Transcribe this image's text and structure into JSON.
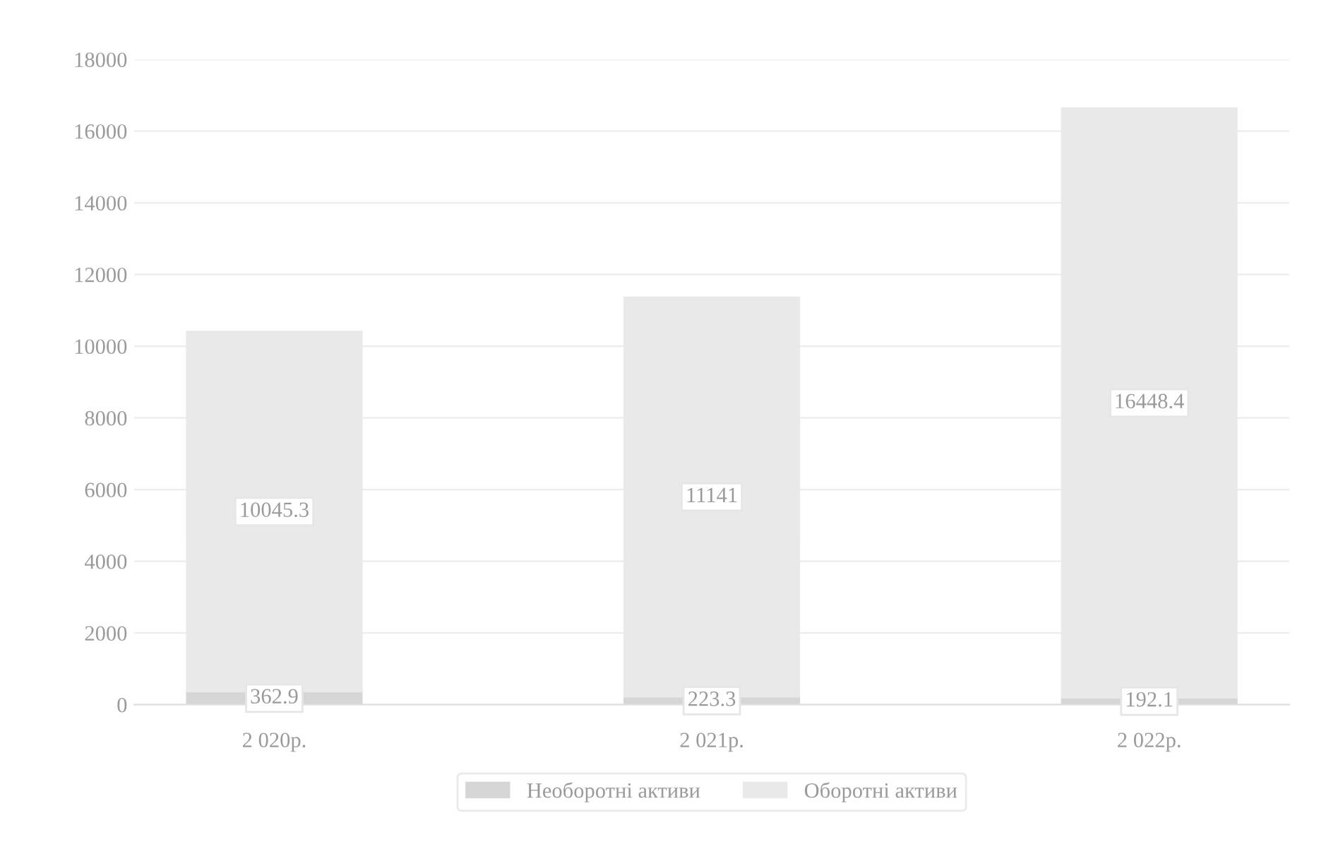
{
  "chart_data": {
    "type": "bar",
    "stacked": true,
    "categories": [
      "2 020р.",
      "2 021р.",
      "2 022р."
    ],
    "series": [
      {
        "name": "Необоротні активи",
        "color": "#d6d6d6",
        "values": [
          362.9,
          223.3,
          192.1
        ]
      },
      {
        "name": "Оборотні активи",
        "color": "#e9e9e9",
        "values": [
          10045.3,
          11141,
          16448.4
        ]
      }
    ],
    "data_labels": true,
    "ylim": [
      0,
      18000
    ],
    "yticks": [
      0,
      2000,
      4000,
      6000,
      8000,
      10000,
      12000,
      14000,
      16000,
      18000
    ],
    "grid": "y",
    "legend": "bottom"
  }
}
